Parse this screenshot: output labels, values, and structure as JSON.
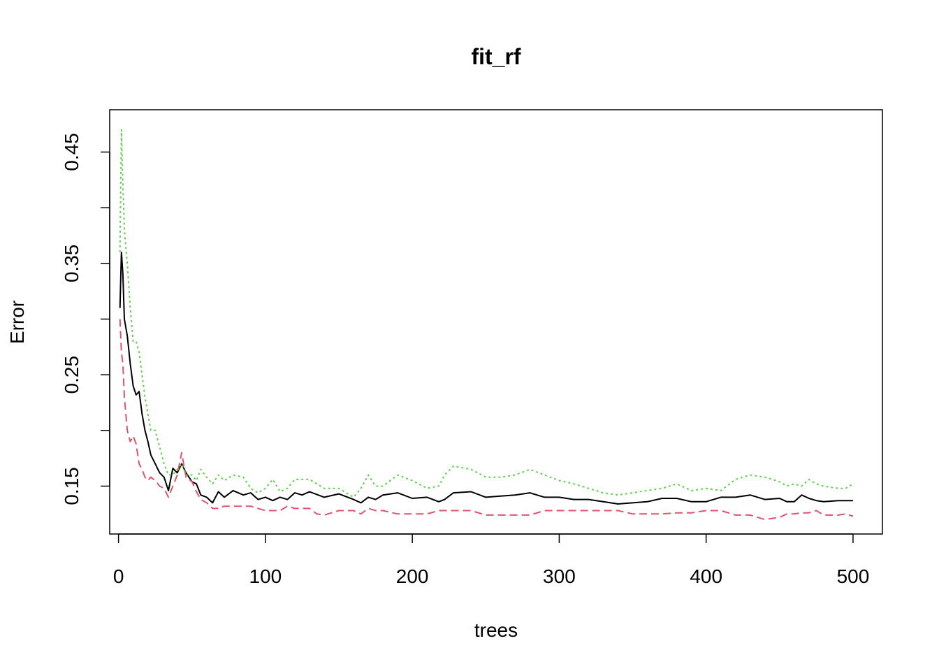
{
  "chart_data": {
    "type": "line",
    "title": "fit_rf",
    "xlabel": "trees",
    "ylabel": "Error",
    "xlim": [
      -6,
      520
    ],
    "ylim": [
      0.107,
      0.488
    ],
    "xticks": [
      0,
      100,
      200,
      300,
      400,
      500
    ],
    "xtick_labels": [
      "0",
      "100",
      "200",
      "300",
      "400",
      "500"
    ],
    "yticks": [
      0.15,
      0.2,
      0.25,
      0.3,
      0.35,
      0.4,
      0.45
    ],
    "ytick_labels": [
      "0.15",
      "",
      "0.25",
      "",
      "0.35",
      "",
      "0.45"
    ],
    "grid": false,
    "legend": "none",
    "series": [
      {
        "color": "#000000",
        "dash": "solid",
        "points": [
          [
            1,
            0.31
          ],
          [
            2,
            0.36
          ],
          [
            3,
            0.34
          ],
          [
            4,
            0.3
          ],
          [
            6,
            0.285
          ],
          [
            8,
            0.26
          ],
          [
            10,
            0.24
          ],
          [
            12,
            0.232
          ],
          [
            14,
            0.235
          ],
          [
            16,
            0.215
          ],
          [
            18,
            0.2
          ],
          [
            20,
            0.19
          ],
          [
            22,
            0.178
          ],
          [
            25,
            0.17
          ],
          [
            28,
            0.162
          ],
          [
            31,
            0.158
          ],
          [
            34,
            0.146
          ],
          [
            37,
            0.166
          ],
          [
            40,
            0.162
          ],
          [
            43,
            0.17
          ],
          [
            46,
            0.162
          ],
          [
            50,
            0.154
          ],
          [
            53,
            0.152
          ],
          [
            56,
            0.142
          ],
          [
            60,
            0.14
          ],
          [
            64,
            0.135
          ],
          [
            68,
            0.145
          ],
          [
            72,
            0.14
          ],
          [
            78,
            0.146
          ],
          [
            85,
            0.142
          ],
          [
            90,
            0.144
          ],
          [
            95,
            0.138
          ],
          [
            100,
            0.14
          ],
          [
            105,
            0.137
          ],
          [
            110,
            0.14
          ],
          [
            115,
            0.138
          ],
          [
            120,
            0.144
          ],
          [
            125,
            0.142
          ],
          [
            130,
            0.145
          ],
          [
            140,
            0.14
          ],
          [
            150,
            0.143
          ],
          [
            160,
            0.138
          ],
          [
            165,
            0.135
          ],
          [
            170,
            0.14
          ],
          [
            175,
            0.138
          ],
          [
            180,
            0.142
          ],
          [
            190,
            0.144
          ],
          [
            200,
            0.139
          ],
          [
            210,
            0.14
          ],
          [
            218,
            0.136
          ],
          [
            222,
            0.138
          ],
          [
            228,
            0.144
          ],
          [
            240,
            0.145
          ],
          [
            250,
            0.14
          ],
          [
            260,
            0.141
          ],
          [
            270,
            0.142
          ],
          [
            280,
            0.144
          ],
          [
            290,
            0.14
          ],
          [
            300,
            0.14
          ],
          [
            310,
            0.138
          ],
          [
            320,
            0.138
          ],
          [
            330,
            0.136
          ],
          [
            340,
            0.134
          ],
          [
            350,
            0.135
          ],
          [
            360,
            0.136
          ],
          [
            370,
            0.139
          ],
          [
            380,
            0.139
          ],
          [
            390,
            0.136
          ],
          [
            400,
            0.136
          ],
          [
            410,
            0.14
          ],
          [
            420,
            0.14
          ],
          [
            430,
            0.142
          ],
          [
            440,
            0.138
          ],
          [
            450,
            0.139
          ],
          [
            455,
            0.136
          ],
          [
            460,
            0.136
          ],
          [
            465,
            0.142
          ],
          [
            470,
            0.139
          ],
          [
            475,
            0.137
          ],
          [
            480,
            0.136
          ],
          [
            490,
            0.137
          ],
          [
            495,
            0.137
          ],
          [
            500,
            0.137
          ]
        ]
      },
      {
        "color": "#DF536B",
        "dash": "dashed",
        "points": [
          [
            1,
            0.3
          ],
          [
            2,
            0.27
          ],
          [
            3,
            0.26
          ],
          [
            4,
            0.23
          ],
          [
            6,
            0.2
          ],
          [
            8,
            0.19
          ],
          [
            10,
            0.195
          ],
          [
            12,
            0.188
          ],
          [
            14,
            0.17
          ],
          [
            16,
            0.165
          ],
          [
            18,
            0.158
          ],
          [
            20,
            0.155
          ],
          [
            22,
            0.158
          ],
          [
            25,
            0.155
          ],
          [
            28,
            0.15
          ],
          [
            31,
            0.148
          ],
          [
            34,
            0.14
          ],
          [
            37,
            0.15
          ],
          [
            40,
            0.16
          ],
          [
            43,
            0.18
          ],
          [
            46,
            0.158
          ],
          [
            50,
            0.154
          ],
          [
            53,
            0.145
          ],
          [
            56,
            0.138
          ],
          [
            60,
            0.135
          ],
          [
            64,
            0.13
          ],
          [
            68,
            0.13
          ],
          [
            72,
            0.132
          ],
          [
            78,
            0.132
          ],
          [
            85,
            0.132
          ],
          [
            90,
            0.132
          ],
          [
            95,
            0.13
          ],
          [
            100,
            0.128
          ],
          [
            110,
            0.128
          ],
          [
            115,
            0.132
          ],
          [
            120,
            0.13
          ],
          [
            125,
            0.13
          ],
          [
            130,
            0.13
          ],
          [
            135,
            0.125
          ],
          [
            140,
            0.124
          ],
          [
            150,
            0.128
          ],
          [
            160,
            0.128
          ],
          [
            165,
            0.125
          ],
          [
            170,
            0.13
          ],
          [
            175,
            0.128
          ],
          [
            180,
            0.128
          ],
          [
            190,
            0.125
          ],
          [
            200,
            0.125
          ],
          [
            210,
            0.125
          ],
          [
            218,
            0.128
          ],
          [
            222,
            0.128
          ],
          [
            228,
            0.128
          ],
          [
            240,
            0.128
          ],
          [
            250,
            0.124
          ],
          [
            260,
            0.124
          ],
          [
            270,
            0.124
          ],
          [
            280,
            0.124
          ],
          [
            290,
            0.128
          ],
          [
            300,
            0.128
          ],
          [
            310,
            0.128
          ],
          [
            320,
            0.128
          ],
          [
            330,
            0.128
          ],
          [
            340,
            0.128
          ],
          [
            350,
            0.125
          ],
          [
            360,
            0.125
          ],
          [
            370,
            0.125
          ],
          [
            380,
            0.126
          ],
          [
            390,
            0.126
          ],
          [
            400,
            0.128
          ],
          [
            410,
            0.128
          ],
          [
            420,
            0.124
          ],
          [
            430,
            0.124
          ],
          [
            440,
            0.12
          ],
          [
            450,
            0.122
          ],
          [
            455,
            0.125
          ],
          [
            460,
            0.125
          ],
          [
            465,
            0.126
          ],
          [
            470,
            0.126
          ],
          [
            475,
            0.128
          ],
          [
            480,
            0.124
          ],
          [
            490,
            0.124
          ],
          [
            495,
            0.125
          ],
          [
            500,
            0.123
          ]
        ]
      },
      {
        "color": "#61D04F",
        "dash": "dotted",
        "points": [
          [
            1,
            0.36
          ],
          [
            2,
            0.47
          ],
          [
            3,
            0.42
          ],
          [
            4,
            0.38
          ],
          [
            6,
            0.35
          ],
          [
            8,
            0.31
          ],
          [
            10,
            0.28
          ],
          [
            12,
            0.28
          ],
          [
            14,
            0.27
          ],
          [
            16,
            0.25
          ],
          [
            18,
            0.23
          ],
          [
            20,
            0.215
          ],
          [
            22,
            0.2
          ],
          [
            25,
            0.2
          ],
          [
            28,
            0.185
          ],
          [
            31,
            0.17
          ],
          [
            34,
            0.16
          ],
          [
            37,
            0.16
          ],
          [
            40,
            0.165
          ],
          [
            43,
            0.17
          ],
          [
            46,
            0.16
          ],
          [
            50,
            0.16
          ],
          [
            53,
            0.155
          ],
          [
            56,
            0.165
          ],
          [
            60,
            0.158
          ],
          [
            64,
            0.152
          ],
          [
            68,
            0.16
          ],
          [
            72,
            0.155
          ],
          [
            78,
            0.16
          ],
          [
            85,
            0.158
          ],
          [
            90,
            0.148
          ],
          [
            95,
            0.144
          ],
          [
            100,
            0.148
          ],
          [
            105,
            0.156
          ],
          [
            110,
            0.145
          ],
          [
            115,
            0.148
          ],
          [
            120,
            0.156
          ],
          [
            125,
            0.156
          ],
          [
            130,
            0.156
          ],
          [
            140,
            0.148
          ],
          [
            150,
            0.148
          ],
          [
            160,
            0.14
          ],
          [
            165,
            0.148
          ],
          [
            170,
            0.16
          ],
          [
            175,
            0.15
          ],
          [
            180,
            0.15
          ],
          [
            190,
            0.16
          ],
          [
            200,
            0.155
          ],
          [
            210,
            0.148
          ],
          [
            218,
            0.15
          ],
          [
            222,
            0.16
          ],
          [
            228,
            0.168
          ],
          [
            240,
            0.165
          ],
          [
            250,
            0.158
          ],
          [
            260,
            0.158
          ],
          [
            270,
            0.16
          ],
          [
            280,
            0.165
          ],
          [
            290,
            0.16
          ],
          [
            300,
            0.155
          ],
          [
            310,
            0.152
          ],
          [
            320,
            0.148
          ],
          [
            330,
            0.144
          ],
          [
            340,
            0.142
          ],
          [
            350,
            0.144
          ],
          [
            360,
            0.146
          ],
          [
            370,
            0.148
          ],
          [
            380,
            0.152
          ],
          [
            390,
            0.146
          ],
          [
            400,
            0.148
          ],
          [
            410,
            0.146
          ],
          [
            420,
            0.156
          ],
          [
            430,
            0.16
          ],
          [
            440,
            0.158
          ],
          [
            450,
            0.154
          ],
          [
            455,
            0.15
          ],
          [
            460,
            0.152
          ],
          [
            465,
            0.15
          ],
          [
            470,
            0.156
          ],
          [
            475,
            0.152
          ],
          [
            480,
            0.15
          ],
          [
            490,
            0.148
          ],
          [
            495,
            0.148
          ],
          [
            500,
            0.152
          ]
        ]
      }
    ]
  }
}
